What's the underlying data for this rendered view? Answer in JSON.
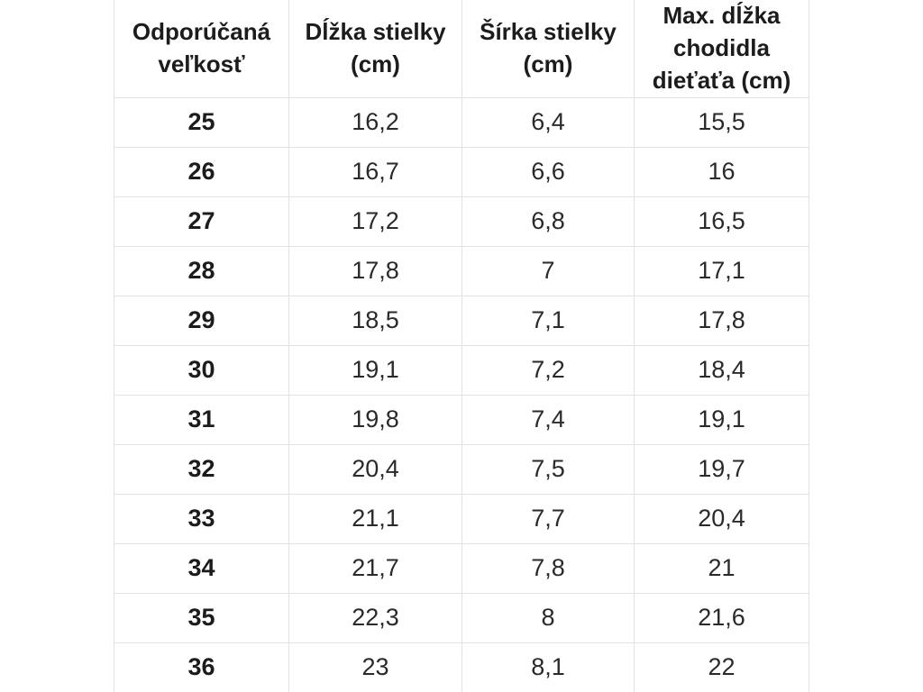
{
  "colors": {
    "background": "#ffffff",
    "border": "#e2e2e2",
    "header_text": "#1c1c1c",
    "cell_text": "#2a2a2a"
  },
  "table": {
    "headers": [
      "Odporúčaná veľkosť",
      "Dĺžka stielky (cm)",
      "Šírka stielky (cm)",
      "Max. dĺžka chodidla dieťaťa (cm)"
    ],
    "rows": [
      [
        "25",
        "16,2",
        "6,4",
        "15,5"
      ],
      [
        "26",
        "16,7",
        "6,6",
        "16"
      ],
      [
        "27",
        "17,2",
        "6,8",
        "16,5"
      ],
      [
        "28",
        "17,8",
        "7",
        "17,1"
      ],
      [
        "29",
        "18,5",
        "7,1",
        "17,8"
      ],
      [
        "30",
        "19,1",
        "7,2",
        "18,4"
      ],
      [
        "31",
        "19,8",
        "7,4",
        "19,1"
      ],
      [
        "32",
        "20,4",
        "7,5",
        "19,7"
      ],
      [
        "33",
        "21,1",
        "7,7",
        "20,4"
      ],
      [
        "34",
        "21,7",
        "7,8",
        "21"
      ],
      [
        "35",
        "22,3",
        "8",
        "21,6"
      ],
      [
        "36",
        "23",
        "8,1",
        "22"
      ]
    ]
  }
}
